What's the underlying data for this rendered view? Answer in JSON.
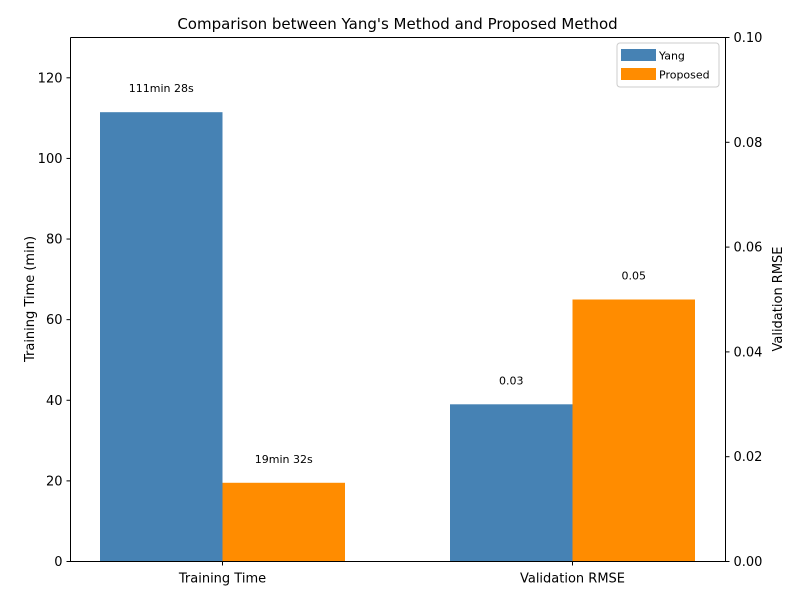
{
  "chart_data": {
    "type": "bar",
    "title": "Comparison between Yang's Method and Proposed Method",
    "categories": [
      "Training Time",
      "Validation RMSE"
    ],
    "series": [
      {
        "name": "Yang",
        "color": "#4682b4",
        "values": [
          111.47,
          0.03
        ],
        "labels": [
          "111min 28s",
          "0.03"
        ]
      },
      {
        "name": "Proposed",
        "color": "#ff8c00",
        "values": [
          19.53,
          0.05
        ],
        "labels": [
          "19min 32s",
          "0.05"
        ]
      }
    ],
    "axes": {
      "left": {
        "label": "Training Time (min)",
        "ylim": [
          0,
          130
        ],
        "ticks": [
          0,
          20,
          40,
          60,
          80,
          100,
          120
        ],
        "tick_labels": [
          "0",
          "20",
          "40",
          "60",
          "80",
          "100",
          "120"
        ],
        "applies_to": "Training Time"
      },
      "right": {
        "label": "Validation RMSE",
        "ylim": [
          0,
          0.1
        ],
        "ticks": [
          0,
          0.02,
          0.04,
          0.06,
          0.08,
          0.1
        ],
        "tick_labels": [
          "0.00",
          "0.02",
          "0.04",
          "0.06",
          "0.08",
          "0.10"
        ],
        "applies_to": "Validation RMSE"
      }
    },
    "legend_position": "top-right",
    "grid": false
  }
}
